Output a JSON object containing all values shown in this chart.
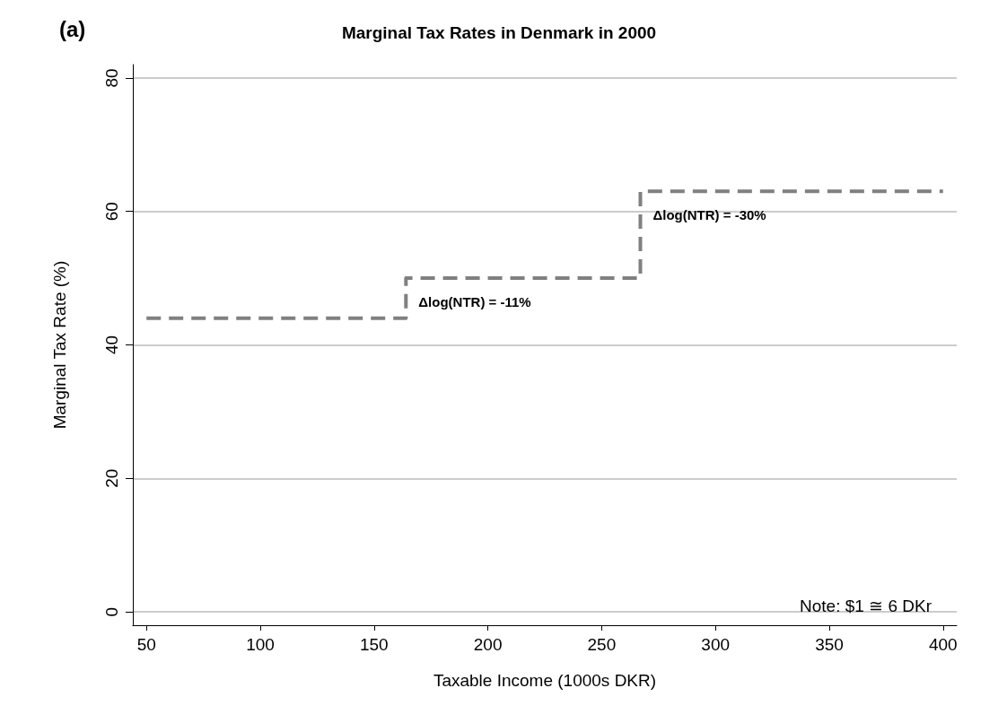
{
  "chart_data": {
    "type": "step",
    "title": "Marginal Tax Rates in Denmark in 2000",
    "xlabel": "Taxable Income (1000s DKR)",
    "ylabel": "Marginal Tax Rate (%)",
    "x": [
      50,
      164,
      267,
      400
    ],
    "series": [
      {
        "color": "#808080",
        "values": [
          44,
          50,
          63,
          63
        ]
      }
    ],
    "line_style": "dashed",
    "marker": "none",
    "xlim": [
      44,
      406
    ],
    "xticks": [
      50,
      100,
      150,
      200,
      250,
      300,
      350,
      400
    ],
    "ylim": [
      -2,
      82
    ],
    "yticks": [
      0,
      20,
      40,
      60,
      80
    ],
    "grid": "y",
    "annotations": [
      "(a)",
      "Note: $1 ≅ 6 DKr",
      "Δlog(NTR) = -11%",
      "Δlog(NTR) = -30%"
    ]
  }
}
